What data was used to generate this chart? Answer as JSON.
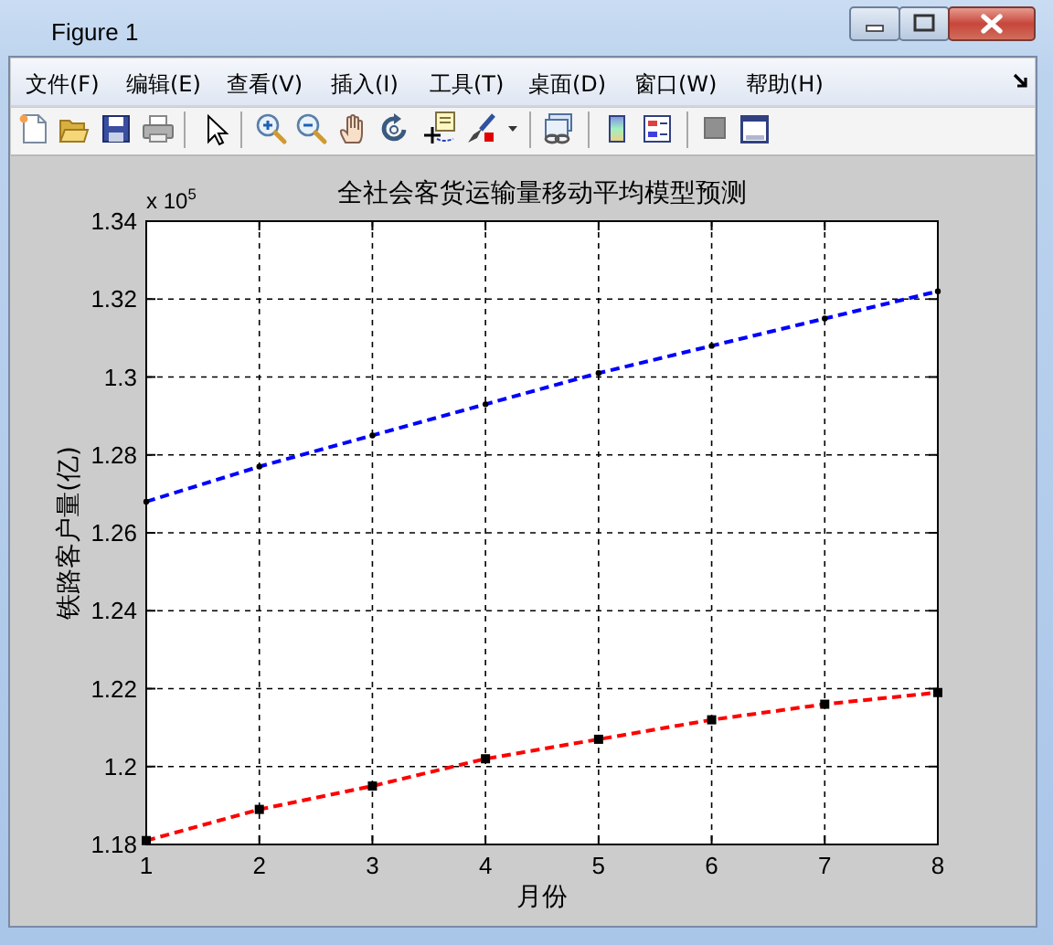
{
  "chart_data": {
    "type": "line",
    "title": "全社会客货运输量移动平均模型预测",
    "xlabel": "月份",
    "ylabel": "铁路客户量(亿)",
    "annotations": [
      "Figure 1",
      "文件(F)",
      "编辑(E)",
      "查看(V)",
      "插入(I)",
      "工具(T)",
      "桌面(D)",
      "窗口(W)",
      "帮助(H)",
      "x 10$^{5}$"
    ],
    "x": [
      1,
      2,
      3,
      4,
      5,
      6,
      7,
      8
    ],
    "series": [
      {
        "color": "#0000ff",
        "marker": "circle",
        "values": [
          1.268,
          1.277,
          1.285,
          1.293,
          1.301,
          1.308,
          1.315,
          1.322
        ]
      },
      {
        "color": "#ff0000",
        "marker": "square",
        "values": [
          1.181,
          1.189,
          1.195,
          1.202,
          1.207,
          1.212,
          1.216,
          1.219
        ]
      }
    ],
    "xlim": [
      1,
      8
    ],
    "xticks": [
      1,
      2,
      3,
      4,
      5,
      6,
      7,
      8
    ],
    "ylim": [
      1.18,
      1.34
    ],
    "yticks": [
      1.18,
      1.2,
      1.22,
      1.24,
      1.26,
      1.28,
      1.3,
      1.32,
      1.34
    ],
    "grid": true,
    "line_style": "dashed"
  }
}
